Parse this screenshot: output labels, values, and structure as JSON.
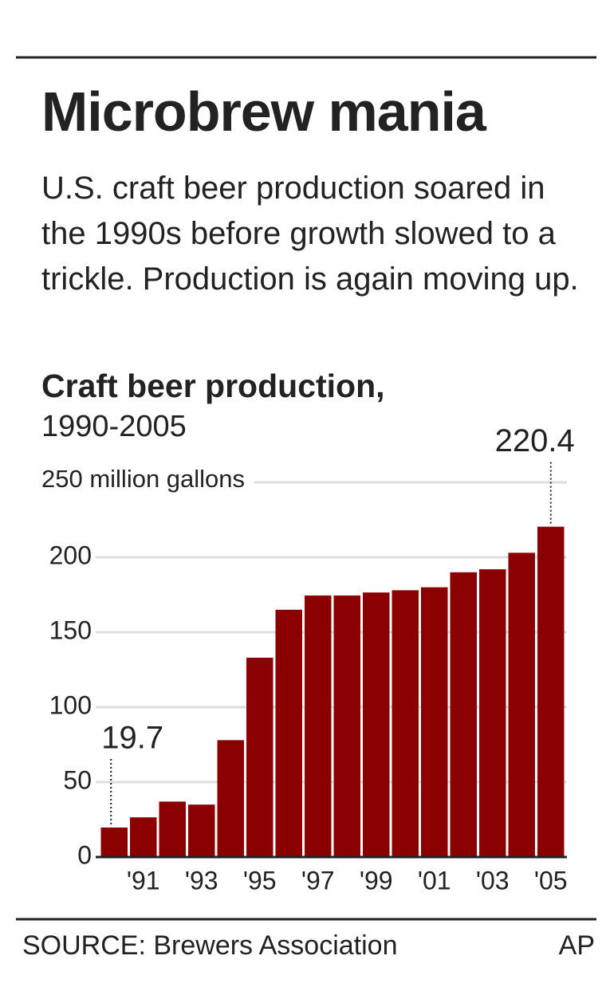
{
  "title": "Microbrew mania",
  "subtitle": "U.S. craft beer production soared in the 1990s before growth slowed to a trickle. Production is again moving up.",
  "source": "SOURCE: Brewers Association",
  "credit": "AP",
  "chart_data": {
    "type": "bar",
    "title": "Craft beer production,",
    "subtitle": "1990-2005",
    "categories": [
      null,
      "'91",
      null,
      "'93",
      null,
      "'95",
      null,
      "'97",
      null,
      "'99",
      null,
      "'01",
      null,
      "'03",
      null,
      "'05"
    ],
    "values": [
      19.7,
      26.5,
      37,
      35,
      78,
      133,
      165,
      174.5,
      174.5,
      176.5,
      178,
      180,
      190,
      192,
      203,
      220.4
    ],
    "labeled_indices": [
      0,
      15
    ],
    "color": "#8b0000",
    "ylim": [
      0,
      250
    ],
    "yticks": [
      0,
      50,
      100,
      150,
      200,
      {
        "value": 250,
        "label": "250 million gallons"
      }
    ],
    "grid": true
  }
}
